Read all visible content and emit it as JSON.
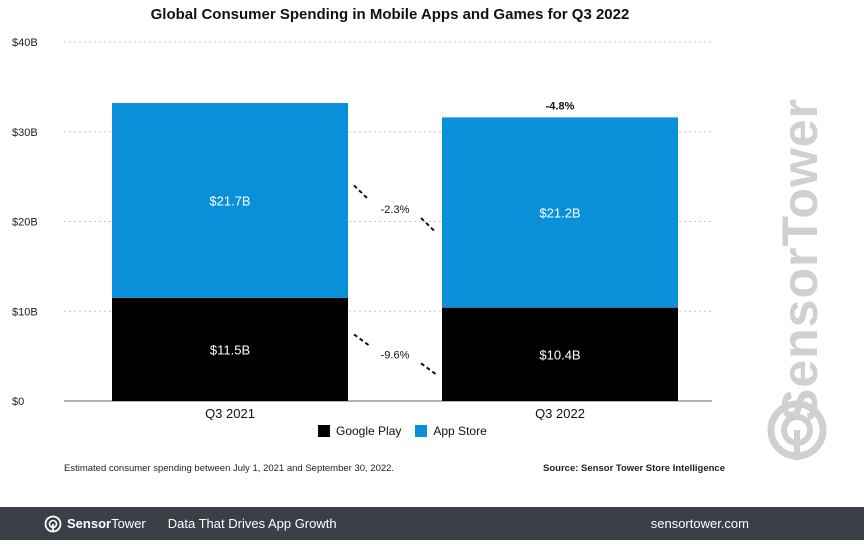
{
  "colors": {
    "app_store": "#0a90d8",
    "google_play": "#000000",
    "footer_bg": "#3b3f47",
    "watermark": "#d0d0d0"
  },
  "chart_data": {
    "type": "bar",
    "stacked": true,
    "title": "Global Consumer Spending in Mobile Apps and Games for Q3 2022",
    "categories": [
      "Q3 2021",
      "Q3 2022"
    ],
    "series": [
      {
        "name": "Google Play",
        "values": [
          11.5,
          10.4
        ],
        "labels": [
          "$11.5B",
          "$10.4B"
        ],
        "color": "#000000"
      },
      {
        "name": "App Store",
        "values": [
          21.7,
          21.2
        ],
        "labels": [
          "$21.7B",
          "$21.2B"
        ],
        "color": "#0a90d8"
      }
    ],
    "ylim": [
      0,
      40
    ],
    "yticks": [
      0,
      10,
      20,
      30,
      40
    ],
    "ytick_labels": [
      "$0",
      "$10B",
      "$20B",
      "$30B",
      "$40B"
    ],
    "grid": true,
    "legend_position": "bottom",
    "annotations": {
      "total_change": "-4.8%",
      "app_store_change": "-2.3%",
      "google_play_change": "-9.6%"
    }
  },
  "note": "Estimated consumer spending between July 1, 2021 and September 30, 2022.",
  "source": "Source: Sensor Tower Store Intelligence",
  "watermark_text": "SensorTower",
  "footer": {
    "brand_icon": "sensor-tower-logo-icon",
    "brand_sensor": "Sensor",
    "brand_tower": "Tower",
    "tagline": "Data That Drives App Growth",
    "url": "sensortower.com"
  }
}
